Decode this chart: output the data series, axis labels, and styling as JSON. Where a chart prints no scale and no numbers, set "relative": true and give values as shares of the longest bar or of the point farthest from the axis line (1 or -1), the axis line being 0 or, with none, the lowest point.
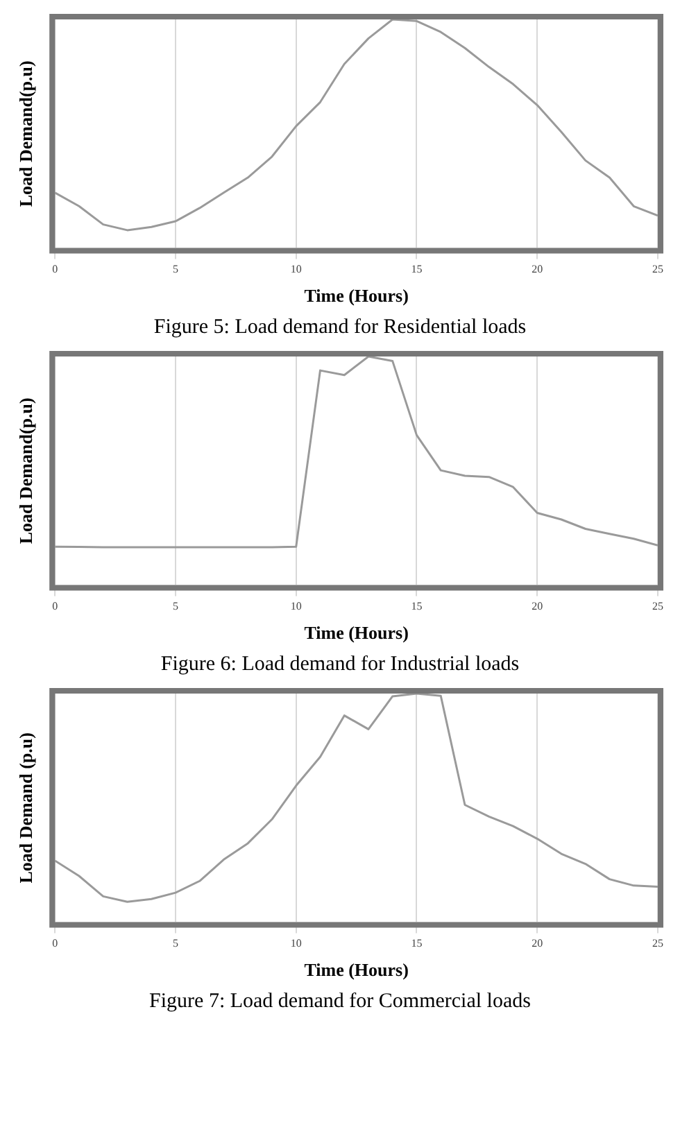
{
  "chart_data": [
    {
      "type": "line",
      "xlabel": "Time (Hours)",
      "ylabel": "Load Demand(p.u)",
      "relative": true,
      "tick_labels": "x",
      "grid": "x",
      "marker": "none",
      "line_style": "solid",
      "xlim": [
        0,
        25
      ],
      "xticks": [
        0,
        5,
        10,
        15,
        20,
        25
      ],
      "x": [
        0,
        1,
        2,
        3,
        4,
        5,
        6,
        7,
        8,
        9,
        10,
        11,
        12,
        13,
        14,
        15,
        16,
        17,
        18,
        19,
        20,
        21,
        22,
        23,
        24,
        25
      ],
      "series": [
        {
          "color": "#9a9a9a",
          "values": [
            0.242,
            0.183,
            0.103,
            0.078,
            0.092,
            0.117,
            0.175,
            0.242,
            0.308,
            0.4,
            0.533,
            0.638,
            0.805,
            0.917,
            1,
            0.993,
            0.945,
            0.875,
            0.792,
            0.717,
            0.625,
            0.508,
            0.383,
            0.308,
            0.183,
            0.142
          ]
        }
      ],
      "annotations": [
        "Figure 5: Load demand for Residential loads"
      ]
    },
    {
      "type": "line",
      "xlabel": "Time (Hours)",
      "ylabel": "Load Demand(p.u)",
      "relative": true,
      "tick_labels": "x",
      "grid": "x",
      "marker": "none",
      "line_style": "solid",
      "xlim": [
        0,
        25
      ],
      "xticks": [
        0,
        5,
        10,
        15,
        20,
        25
      ],
      "x": [
        0,
        1,
        2,
        3,
        4,
        5,
        6,
        7,
        8,
        9,
        10,
        11,
        12,
        13,
        14,
        15,
        16,
        17,
        18,
        19,
        20,
        21,
        22,
        23,
        24,
        25
      ],
      "series": [
        {
          "color": "#9a9a9a",
          "values": [
            0.168,
            0.167,
            0.166,
            0.166,
            0.166,
            0.166,
            0.166,
            0.166,
            0.166,
            0.166,
            0.168,
            0.939,
            0.919,
            1,
            0.98,
            0.656,
            0.502,
            0.478,
            0.473,
            0.429,
            0.316,
            0.287,
            0.246,
            0.224,
            0.203,
            0.174
          ]
        }
      ],
      "annotations": [
        "Figure 6: Load demand for Industrial loads"
      ]
    },
    {
      "type": "line",
      "xlabel": "Time (Hours)",
      "ylabel": "Load Demand (p.u)",
      "relative": true,
      "tick_labels": "x",
      "grid": "x",
      "marker": "none",
      "line_style": "solid",
      "xlim": [
        0,
        25
      ],
      "xticks": [
        0,
        5,
        10,
        15,
        20,
        25
      ],
      "x": [
        0,
        1,
        2,
        3,
        4,
        5,
        6,
        7,
        8,
        9,
        10,
        11,
        12,
        13,
        14,
        15,
        16,
        17,
        18,
        19,
        20,
        21,
        22,
        23,
        24,
        25
      ],
      "series": [
        {
          "color": "#9a9a9a",
          "values": [
            0.269,
            0.202,
            0.113,
            0.089,
            0.101,
            0.129,
            0.18,
            0.274,
            0.345,
            0.45,
            0.597,
            0.723,
            0.904,
            0.844,
            0.988,
            1,
            0.99,
            0.513,
            0.462,
            0.42,
            0.365,
            0.299,
            0.255,
            0.188,
            0.16,
            0.155
          ]
        }
      ],
      "annotations": [
        "Figure 7: Load demand for Commercial loads"
      ]
    }
  ]
}
